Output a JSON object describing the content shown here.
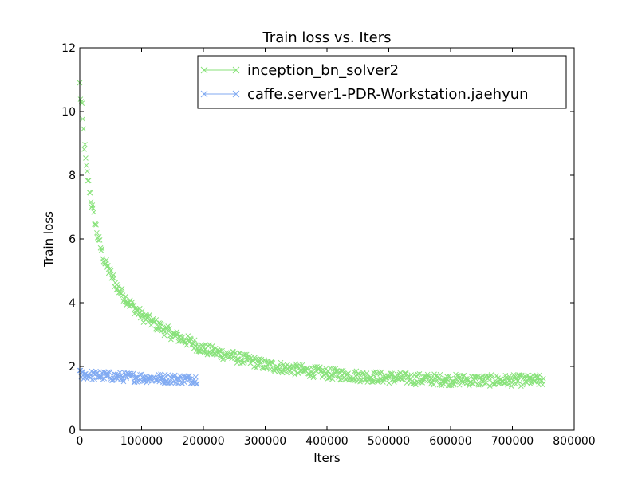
{
  "chart_data": {
    "type": "scatter",
    "title": "Train loss  vs. Iters",
    "xlabel": "Iters",
    "ylabel": "Train loss",
    "xlim": [
      0,
      800000
    ],
    "ylim": [
      0,
      12
    ],
    "xticks": [
      0,
      100000,
      200000,
      300000,
      400000,
      500000,
      600000,
      700000,
      800000
    ],
    "yticks": [
      0,
      2,
      4,
      6,
      8,
      10,
      12
    ],
    "xtick_labels": [
      "0",
      "100000",
      "200000",
      "300000",
      "400000",
      "500000",
      "600000",
      "700000",
      "800000"
    ],
    "ytick_labels": [
      "0",
      "2",
      "4",
      "6",
      "8",
      "10",
      "12"
    ],
    "grid": false,
    "legend_position": "top-right",
    "marker": "x",
    "series": [
      {
        "name": "inception_bn_solver2",
        "color": "#88e27a",
        "x": [
          0,
          5000,
          10000,
          20000,
          30000,
          40000,
          50000,
          60000,
          80000,
          100000,
          120000,
          150000,
          180000,
          200000,
          250000,
          300000,
          350000,
          400000,
          450000,
          500000,
          550000,
          600000,
          650000,
          700000,
          750000
        ],
        "y": [
          10.8,
          9.6,
          8.3,
          7.0,
          6.0,
          5.3,
          4.9,
          4.5,
          4.0,
          3.6,
          3.35,
          3.0,
          2.75,
          2.55,
          2.3,
          2.05,
          1.9,
          1.78,
          1.7,
          1.65,
          1.6,
          1.58,
          1.56,
          1.56,
          1.56
        ],
        "spread": 0.18
      },
      {
        "name": "caffe.server1-PDR-Workstation.jaehyun",
        "color": "#80aaf2",
        "x": [
          0,
          20000,
          40000,
          60000,
          80000,
          100000,
          120000,
          140000,
          160000,
          190000
        ],
        "y": [
          1.75,
          1.72,
          1.7,
          1.68,
          1.66,
          1.65,
          1.63,
          1.62,
          1.6,
          1.6
        ],
        "spread": 0.15
      }
    ]
  }
}
